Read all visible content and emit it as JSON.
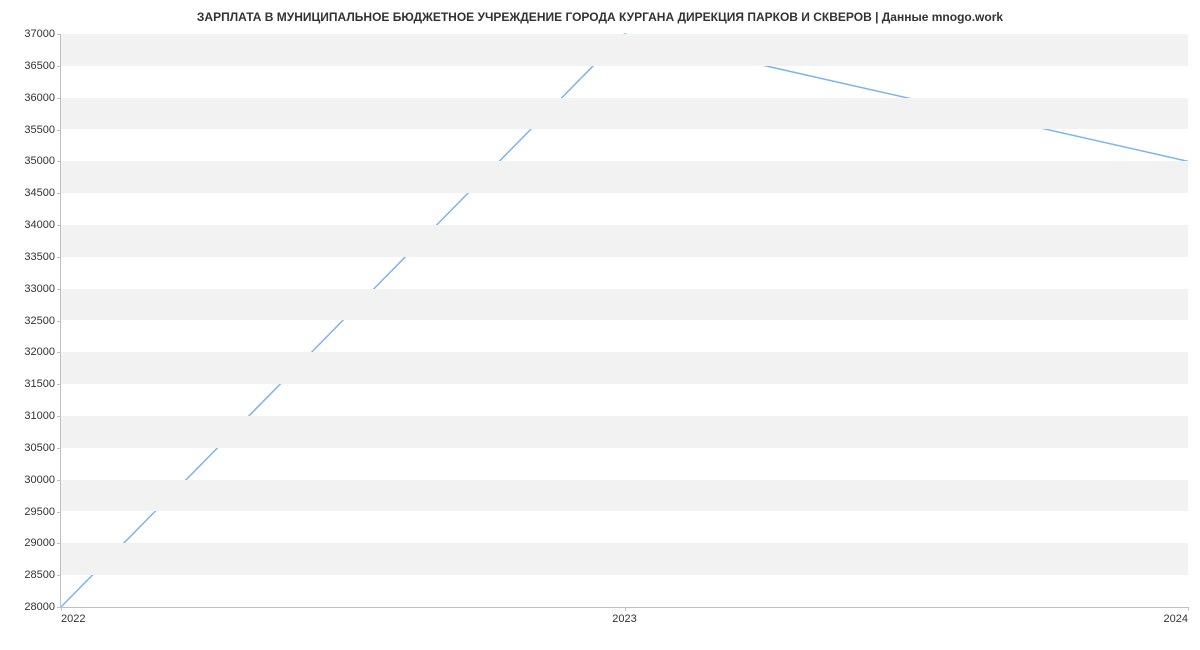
{
  "chart": {
    "type": "line",
    "title": "ЗАРПЛАТА В МУНИЦИПАЛЬНОЕ БЮДЖЕТНОЕ УЧРЕЖДЕНИЕ ГОРОДА КУРГАНА ДИРЕКЦИЯ ПАРКОВ И СКВЕРОВ | Данные mnogo.work",
    "title_fontsize": 12,
    "title_color": "#333333",
    "background_color": "#ffffff",
    "plot_band_color": "#f2f2f2",
    "axis_line_color": "#c0c0c0",
    "tick_label_color": "#333333",
    "tick_label_fontsize": 11,
    "x": {
      "ticks": [
        "2022",
        "2023",
        "2024"
      ],
      "positions": [
        0,
        0.5,
        1
      ]
    },
    "y": {
      "min": 28000,
      "max": 37000,
      "step": 500,
      "ticks": [
        28000,
        28500,
        29000,
        29500,
        30000,
        30500,
        31000,
        31500,
        32000,
        32500,
        33000,
        33500,
        34000,
        34500,
        35000,
        35500,
        36000,
        36500,
        37000
      ]
    },
    "series": {
      "color": "#7cb5ec",
      "line_width": 1.5,
      "points": [
        {
          "x": 0.0,
          "y": 28000
        },
        {
          "x": 0.5,
          "y": 37000
        },
        {
          "x": 1.0,
          "y": 35000
        }
      ]
    }
  }
}
